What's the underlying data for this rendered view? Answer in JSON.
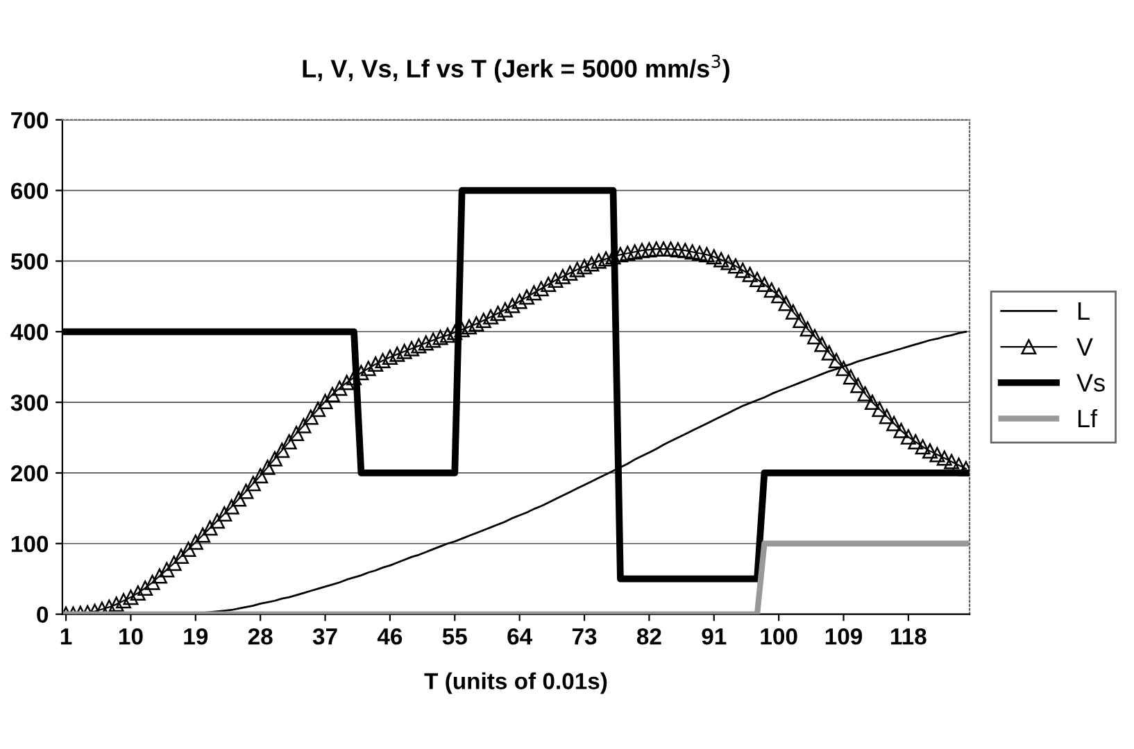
{
  "chart_data": {
    "type": "line",
    "title": "L, V, Vs, Lf vs T (Jerk = 5000 mm/s$^{3}$)",
    "xlabel": "T (units of 0.01s)",
    "categories": [
      "1",
      null,
      null,
      null,
      null,
      null,
      null,
      null,
      null,
      "10",
      null,
      null,
      null,
      null,
      null,
      null,
      null,
      null,
      "19",
      null,
      null,
      null,
      null,
      null,
      null,
      null,
      null,
      "28",
      null,
      null,
      null,
      null,
      null,
      null,
      null,
      null,
      "37",
      null,
      null,
      null,
      null,
      null,
      null,
      null,
      null,
      "46",
      null,
      null,
      null,
      null,
      null,
      null,
      null,
      null,
      "55",
      null,
      null,
      null,
      null,
      null,
      null,
      null,
      null,
      "64",
      null,
      null,
      null,
      null,
      null,
      null,
      null,
      null,
      "73",
      null,
      null,
      null,
      null,
      null,
      null,
      null,
      null,
      "82",
      null,
      null,
      null,
      null,
      null,
      null,
      null,
      null,
      "91",
      null,
      null,
      null,
      null,
      null,
      null,
      null,
      null,
      "100",
      null,
      null,
      null,
      null,
      null,
      null,
      null,
      null,
      "109",
      null,
      null,
      null,
      null,
      null,
      null,
      null,
      null,
      "118",
      null,
      null,
      null,
      null,
      null,
      null,
      null,
      null
    ],
    "series": [
      {
        "name": "L",
        "color": "#000000",
        "marker": "none",
        "values": [
          0,
          0,
          0,
          0,
          0,
          0,
          0,
          0,
          0,
          0,
          0,
          0,
          0,
          0,
          0,
          0,
          0,
          0,
          1,
          2,
          3,
          4,
          5,
          6,
          8,
          10,
          12,
          15,
          17,
          19,
          22,
          24,
          27,
          30,
          33,
          36,
          39,
          42,
          45,
          49,
          52,
          55,
          59,
          62,
          66,
          69,
          73,
          77,
          81,
          84,
          88,
          92,
          96,
          100,
          103,
          107,
          111,
          115,
          119,
          123,
          127,
          131,
          136,
          140,
          144,
          149,
          153,
          158,
          163,
          168,
          173,
          178,
          183,
          188,
          193,
          198,
          203,
          208,
          213,
          219,
          224,
          229,
          234,
          240,
          245,
          250,
          255,
          260,
          265,
          270,
          275,
          280,
          285,
          290,
          295,
          299,
          303,
          307,
          312,
          316,
          320,
          324,
          328,
          332,
          336,
          340,
          344,
          347,
          351,
          354,
          358,
          361,
          364,
          367,
          370,
          373,
          376,
          379,
          382,
          385,
          388,
          390,
          393,
          395,
          398,
          400
        ]
      },
      {
        "name": "V",
        "color": "#000000",
        "marker": "triangle",
        "values": [
          0,
          0,
          1,
          2,
          4,
          7,
          10,
          14,
          19,
          24,
          30,
          37,
          45,
          54,
          63,
          72,
          82,
          92,
          102,
          112,
          122,
          132,
          142,
          152,
          163,
          174,
          185,
          196,
          208,
          220,
          232,
          244,
          256,
          267,
          279,
          290,
          301,
          311,
          320,
          328,
          335,
          342,
          348,
          354,
          359,
          364,
          368,
          372,
          376,
          380,
          384,
          388,
          392,
          395,
          399,
          403,
          407,
          411,
          416,
          421,
          426,
          431,
          437,
          443,
          449,
          455,
          461,
          467,
          473,
          478,
          483,
          488,
          492,
          496,
          500,
          503,
          506,
          509,
          511,
          513,
          515,
          516,
          517,
          517,
          517,
          516,
          515,
          513,
          511,
          509,
          506,
          502,
          498,
          493,
          487,
          481,
          474,
          467,
          459,
          451,
          440,
          428,
          416,
          404,
          393,
          382,
          370,
          359,
          348,
          336,
          324,
          312,
          300,
          290,
          280,
          270,
          260,
          251,
          244,
          237,
          231,
          226,
          221,
          216,
          211,
          206
        ]
      },
      {
        "name": "Vs",
        "color": "#000000",
        "marker": "none",
        "values": [
          400,
          400,
          400,
          400,
          400,
          400,
          400,
          400,
          400,
          400,
          400,
          400,
          400,
          400,
          400,
          400,
          400,
          400,
          400,
          400,
          400,
          400,
          400,
          400,
          400,
          400,
          400,
          400,
          400,
          400,
          400,
          400,
          400,
          400,
          400,
          400,
          400,
          400,
          400,
          400,
          400,
          200,
          200,
          200,
          200,
          200,
          200,
          200,
          200,
          200,
          200,
          200,
          200,
          200,
          200,
          600,
          600,
          600,
          600,
          600,
          600,
          600,
          600,
          600,
          600,
          600,
          600,
          600,
          600,
          600,
          600,
          600,
          600,
          600,
          600,
          600,
          600,
          50,
          50,
          50,
          50,
          50,
          50,
          50,
          50,
          50,
          50,
          50,
          50,
          50,
          50,
          50,
          50,
          50,
          50,
          50,
          50,
          200,
          200,
          200,
          200,
          200,
          200,
          200,
          200,
          200,
          200,
          200,
          200,
          200,
          200,
          200,
          200,
          200,
          200,
          200,
          200,
          200,
          200,
          200,
          200,
          200,
          200,
          200,
          200,
          200
        ]
      },
      {
        "name": "Lf",
        "color": "#999999",
        "marker": "none",
        "values": [
          0,
          0,
          0,
          0,
          0,
          0,
          0,
          0,
          0,
          0,
          0,
          0,
          0,
          0,
          0,
          0,
          0,
          0,
          0,
          0,
          0,
          0,
          0,
          0,
          0,
          0,
          0,
          0,
          0,
          0,
          0,
          0,
          0,
          0,
          0,
          0,
          0,
          0,
          0,
          0,
          0,
          0,
          0,
          0,
          0,
          0,
          0,
          0,
          0,
          0,
          0,
          0,
          0,
          0,
          0,
          0,
          0,
          0,
          0,
          0,
          0,
          0,
          0,
          0,
          0,
          0,
          0,
          0,
          0,
          0,
          0,
          0,
          0,
          0,
          0,
          0,
          0,
          0,
          0,
          0,
          0,
          0,
          0,
          0,
          0,
          0,
          0,
          0,
          0,
          0,
          0,
          0,
          0,
          0,
          0,
          0,
          0,
          100,
          100,
          100,
          100,
          100,
          100,
          100,
          100,
          100,
          100,
          100,
          100,
          100,
          100,
          100,
          100,
          100,
          100,
          100,
          100,
          100,
          100,
          100,
          100,
          100,
          100,
          100,
          100,
          100
        ]
      }
    ],
    "ylim": [
      0,
      700
    ],
    "yticks": [
      0,
      100,
      200,
      300,
      400,
      500,
      600,
      700
    ],
    "grid": "y",
    "legend": "right",
    "line_style": "solid"
  }
}
